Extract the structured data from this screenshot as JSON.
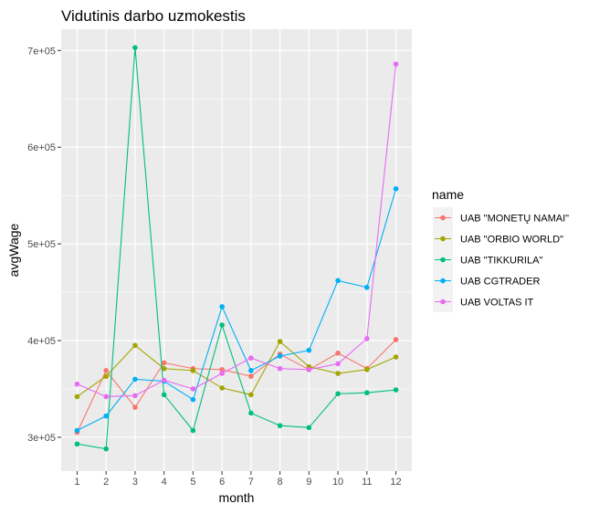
{
  "chart_data": {
    "type": "line",
    "title": "Vidutinis darbo uzmokestis",
    "xlabel": "month",
    "ylabel": "avgWage",
    "x": [
      1,
      2,
      3,
      4,
      5,
      6,
      7,
      8,
      9,
      10,
      11,
      12
    ],
    "x_ticks": [
      "1",
      "2",
      "3",
      "4",
      "5",
      "6",
      "7",
      "8",
      "9",
      "10",
      "11",
      "12"
    ],
    "xlim": [
      0.45,
      12.55
    ],
    "ylim": [
      265000,
      722000
    ],
    "y_ticks": [
      300000,
      400000,
      500000,
      600000,
      700000
    ],
    "y_tick_labels": [
      "3e+05",
      "4e+05",
      "5e+05",
      "6e+05",
      "7e+05"
    ],
    "grid": true,
    "legend": {
      "title": "name",
      "placement": "right"
    },
    "series": [
      {
        "name": "UAB \"MONETŲ NAMAI\"",
        "color": "#F8766D",
        "values": [
          305000,
          369000,
          331000,
          377000,
          371000,
          370000,
          363000,
          386000,
          370000,
          387000,
          371000,
          401000
        ]
      },
      {
        "name": "UAB \"ORBIO WORLD\"",
        "color": "#A3A500",
        "values": [
          342000,
          363000,
          395000,
          371000,
          369000,
          351000,
          344000,
          399000,
          373000,
          366000,
          370000,
          383000
        ]
      },
      {
        "name": "UAB \"TIKKURILA\"",
        "color": "#00BF7D",
        "values": [
          293000,
          288000,
          703000,
          344000,
          307000,
          416000,
          325000,
          312000,
          310000,
          345000,
          346000,
          349000
        ]
      },
      {
        "name": "UAB CGTRADER",
        "color": "#00B0F6",
        "values": [
          307000,
          322000,
          360000,
          358000,
          339000,
          435000,
          369000,
          384000,
          390000,
          462000,
          455000,
          557000
        ]
      },
      {
        "name": "UAB VOLTAS IT",
        "color": "#E76BF3",
        "values": [
          355000,
          342000,
          343000,
          359000,
          350000,
          366000,
          382000,
          371000,
          370000,
          376000,
          402000,
          686000
        ]
      }
    ]
  }
}
